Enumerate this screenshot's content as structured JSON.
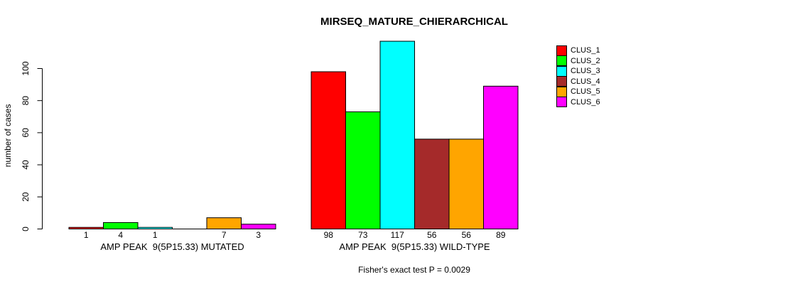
{
  "chart_data": {
    "type": "bar",
    "title": "MIRSEQ_MATURE_CHIERARCHICAL",
    "ylabel": "number of cases",
    "xlabel": "",
    "ylim": [
      0,
      100
    ],
    "yticks": [
      0,
      20,
      40,
      60,
      80,
      100
    ],
    "grid": false,
    "annotation": "Fisher's exact test P = 0.0029",
    "legend": {
      "position": "right",
      "entries": [
        {
          "label": "CLUS_1",
          "color": "#FF0000"
        },
        {
          "label": "CLUS_2",
          "color": "#00FF00"
        },
        {
          "label": "CLUS_3",
          "color": "#00FFFF"
        },
        {
          "label": "CLUS_4",
          "color": "#A52A2A"
        },
        {
          "label": "CLUS_5",
          "color": "#FFA500"
        },
        {
          "label": "CLUS_6",
          "color": "#FF00FF"
        }
      ]
    },
    "groups": [
      {
        "label": "AMP PEAK  9(5P15.33) MUTATED",
        "values": [
          1,
          4,
          1,
          0,
          7,
          3
        ],
        "bar_labels": [
          "1",
          "4",
          "1",
          "",
          "7",
          "3"
        ]
      },
      {
        "label": "AMP PEAK  9(5P15.33) WILD-TYPE",
        "values": [
          98,
          73,
          117,
          56,
          56,
          89
        ],
        "bar_labels": [
          "98",
          "73",
          "117",
          "56",
          "56",
          "89"
        ]
      }
    ],
    "bar_border_color": "#000000",
    "background": "#FFFFFF"
  }
}
